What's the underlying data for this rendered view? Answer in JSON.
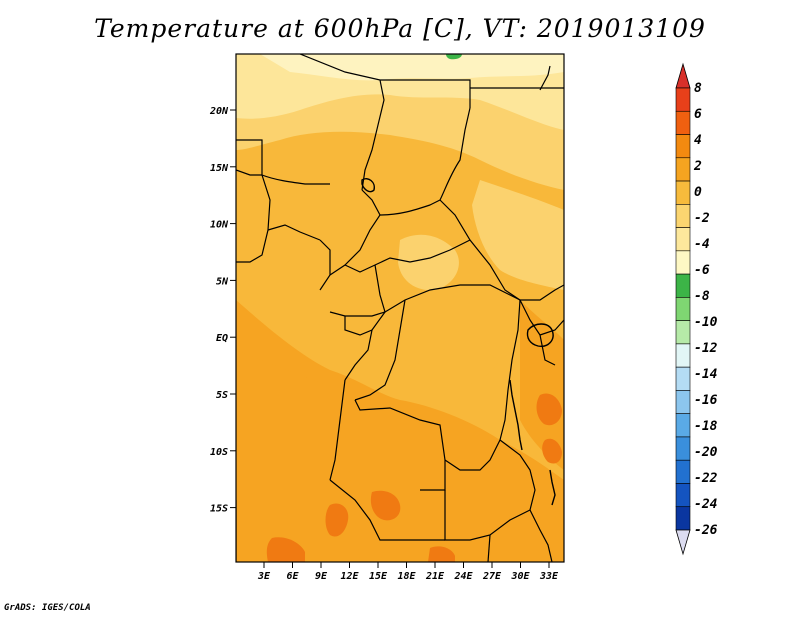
{
  "title": "Temperature at 600hPa [C], VT: 2019013109",
  "footer": "GrADS: IGES/COLA",
  "y_ticks": [
    "20N",
    "15N",
    "10N",
    "5N",
    "EQ",
    "5S",
    "10S",
    "15S"
  ],
  "x_ticks": [
    "3E",
    "6E",
    "9E",
    "12E",
    "15E",
    "18E",
    "21E",
    "24E",
    "27E",
    "30E",
    "33E"
  ],
  "colorbar": {
    "labels": [
      "8",
      "6",
      "4",
      "2",
      "0",
      "-2",
      "-4",
      "-6",
      "-8",
      "-10",
      "-12",
      "-14",
      "-16",
      "-18",
      "-20",
      "-22",
      "-24",
      "-26"
    ],
    "colors": [
      "#e8401a",
      "#f06010",
      "#f38a10",
      "#f5a420",
      "#f7bb3c",
      "#fbd570",
      "#fde89c",
      "#fef8c4",
      "#3cb447",
      "#7fd672",
      "#b6eaa8",
      "#e2f6f6",
      "#b4dcf4",
      "#8cc6ee",
      "#5aaae6",
      "#3a8fdc",
      "#2271d0",
      "#1454c0",
      "#0a36a0",
      "#08207e"
    ],
    "top_arrow_color": "#d8302a",
    "bottom_arrow_color": "#dcdcf0"
  },
  "map_colors": {
    "deep": "#f6a422",
    "mid": "#f8b83a",
    "light": "#fbd26e",
    "pale": "#fde69a",
    "cream": "#fef3c0",
    "warm": "#f07a12",
    "green": "#3cb447",
    "border": "#000000"
  }
}
